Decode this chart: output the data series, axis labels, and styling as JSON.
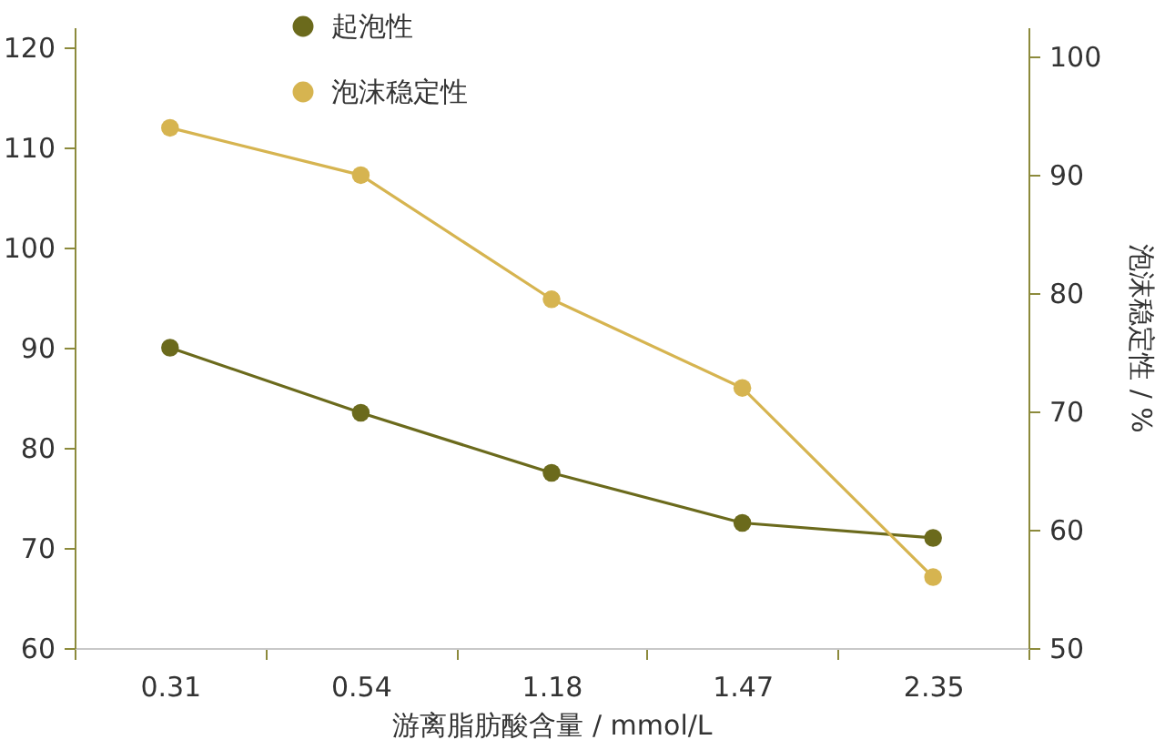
{
  "chart_data": {
    "type": "line",
    "xlabel": "游离脂肪酸含量 / mmol/L",
    "y2label": "泡沫稳定性 / %",
    "categories": [
      "0.31",
      "0.54",
      "1.18",
      "1.47",
      "2.35"
    ],
    "series": [
      {
        "name": "起泡性",
        "color": "#6b6a1c",
        "values": [
          90,
          83.5,
          77.5,
          72.5,
          71
        ]
      },
      {
        "name": "泡沫稳定性",
        "color": "#d6b450",
        "axis": "y2",
        "values": [
          94,
          90,
          79.5,
          72,
          56
        ]
      }
    ],
    "ylim": [
      60,
      122
    ],
    "yticks": [
      60,
      70,
      80,
      90,
      100,
      110,
      120
    ],
    "y2lim": [
      50,
      102.5
    ],
    "y2ticks": [
      50,
      60,
      70,
      80,
      90,
      100
    ],
    "grid": false,
    "legend": "top left",
    "marker": "circle",
    "line_style": "solid"
  }
}
